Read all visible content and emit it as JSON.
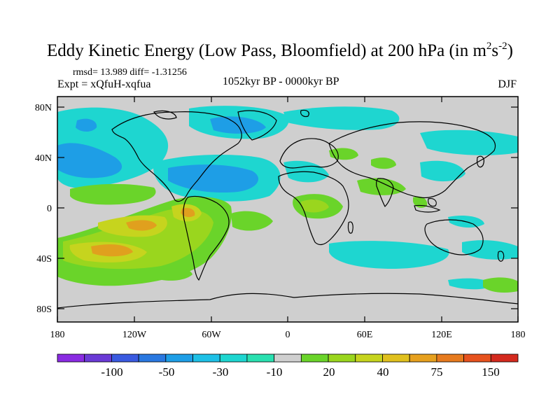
{
  "title": {
    "main": "Eddy Kinetic Energy (Low Pass, Bloomfield) at 200 hPa (in m",
    "unit_m_exp": "2",
    "unit_s": "s",
    "unit_s_exp": "-2",
    "close": ")"
  },
  "stats": "rmsd= 13.989 diff= -1.31256",
  "expt": "Expt = xQfuH-xqfua",
  "period": "1052kyr BP - 0000kyr BP",
  "season": "DJF",
  "axes": {
    "y_ticks": [
      "80N",
      "40N",
      "0",
      "40S",
      "80S"
    ],
    "x_ticks": [
      "180",
      "120W",
      "60W",
      "0",
      "60E",
      "120E",
      "180"
    ]
  },
  "colorbar": {
    "colors": [
      "#8a2be2",
      "#6a3ad6",
      "#3a5ae0",
      "#2a78e0",
      "#1e9ee6",
      "#1ec0e6",
      "#1ed6d0",
      "#2ae0b0",
      "#cfcfcf",
      "#6ad42a",
      "#9ad61e",
      "#c6d41e",
      "#e0c01e",
      "#e6a01e",
      "#e67a1e",
      "#e6521e",
      "#d42a1e"
    ],
    "labels": [
      "-100",
      "-50",
      "-30",
      "-10",
      "20",
      "40",
      "75",
      "150"
    ]
  },
  "colors": {
    "land_background": "#cfcfcf",
    "cyan": "#1ed6d0",
    "blue": "#1e9ee6",
    "green": "#9ad61e",
    "light_green": "#6ad42a",
    "yellow": "#c6d41e",
    "orange": "#e0a01e"
  }
}
